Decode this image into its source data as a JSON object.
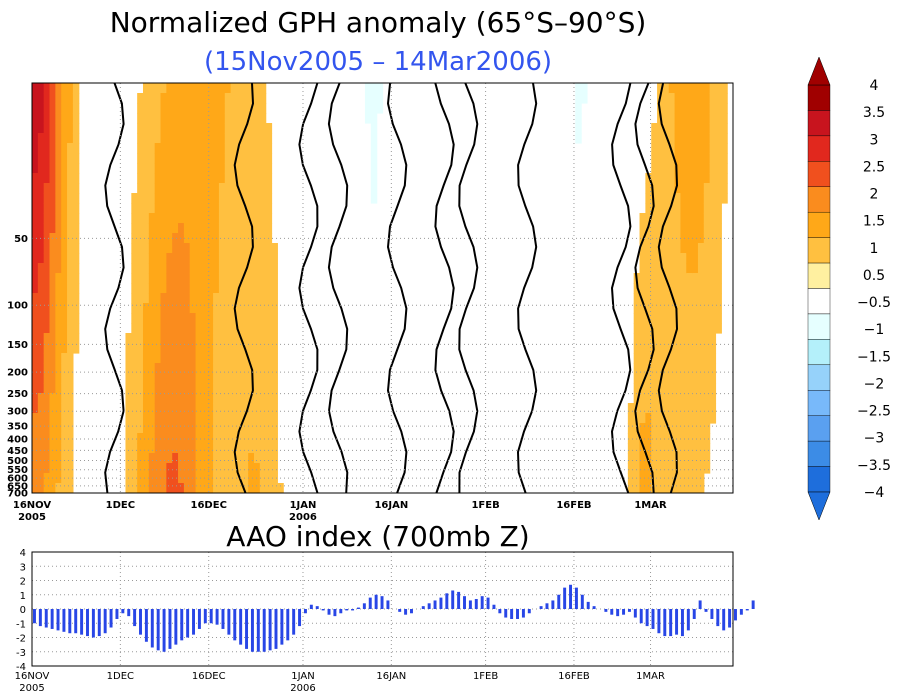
{
  "chart_data": [
    {
      "type": "heatmap",
      "title": "Normalized GPH anomaly (65°S–90°S)",
      "subtitle": "(15Nov2005 – 14Mar2006)",
      "colors": {
        "title": "#000000",
        "subtitle": "#3355ee"
      },
      "x_ticks": [
        {
          "label": "16NOV",
          "sub": "2005",
          "day": 0
        },
        {
          "label": "1DEC",
          "sub": "",
          "day": 15
        },
        {
          "label": "16DEC",
          "sub": "",
          "day": 30
        },
        {
          "label": "1JAN",
          "sub": "2006",
          "day": 46
        },
        {
          "label": "16JAN",
          "sub": "",
          "day": 61
        },
        {
          "label": "1FEB",
          "sub": "",
          "day": 77
        },
        {
          "label": "16FEB",
          "sub": "",
          "day": 92
        },
        {
          "label": "1MAR",
          "sub": "",
          "day": 105
        }
      ],
      "xlim": [
        0,
        119
      ],
      "y_ticks": [
        "50",
        "100",
        "150",
        "200",
        "250",
        "300",
        "350",
        "400",
        "450",
        "500",
        "550",
        "600",
        "650",
        "700"
      ],
      "y_pressure": [
        50,
        100,
        150,
        200,
        250,
        300,
        350,
        400,
        450,
        500,
        550,
        600,
        650,
        700
      ],
      "ylim_pressure": [
        10,
        700
      ],
      "y_scale": "log-pressure",
      "colorbar": {
        "labels": [
          "4",
          "3.5",
          "3",
          "2.5",
          "2",
          "1.5",
          "1",
          "0.5",
          "−0.5",
          "−1",
          "−1.5",
          "−2",
          "−2.5",
          "−3",
          "−3.5",
          "−4"
        ],
        "bins": [
          {
            "range": [
              3.5,
              4.0
            ],
            "color": "#a00000"
          },
          {
            "range": [
              3.0,
              3.5
            ],
            "color": "#c8141e"
          },
          {
            "range": [
              2.5,
              3.0
            ],
            "color": "#e1281e"
          },
          {
            "range": [
              2.0,
              2.5
            ],
            "color": "#f0501e"
          },
          {
            "range": [
              1.5,
              2.0
            ],
            "color": "#fa8c1e"
          },
          {
            "range": [
              1.0,
              1.5
            ],
            "color": "#ffa818"
          },
          {
            "range": [
              0.5,
              1.0
            ],
            "color": "#ffc040"
          },
          {
            "range": [
              -0.5,
              0.5
            ],
            "color": "#ffffff"
          },
          {
            "range": [
              -1.0,
              -0.5
            ],
            "color": "#e6ffff"
          },
          {
            "range": [
              -1.5,
              -1.0
            ],
            "color": "#b4f0fa"
          },
          {
            "range": [
              -2.0,
              -1.5
            ],
            "color": "#96d2fa"
          },
          {
            "range": [
              -2.5,
              -2.0
            ],
            "color": "#78b9fa"
          },
          {
            "range": [
              -3.0,
              -2.5
            ],
            "color": "#5aa0f0"
          },
          {
            "range": [
              -3.5,
              -3.0
            ],
            "color": "#3c8ce6"
          },
          {
            "range": [
              -4.0,
              -3.5
            ],
            "color": "#1e6edc"
          }
        ],
        "above_color": "#a00000",
        "below_color": "#1e6edc",
        "zero_band": "#fff0a0"
      }
    },
    {
      "type": "bar",
      "title": "AAO index (700mb Z)",
      "ylim": [
        -4,
        4
      ],
      "y_ticks": [
        "4",
        "3",
        "2",
        "1",
        "0",
        "-1",
        "-2",
        "-3",
        "-4"
      ],
      "x_ticks": [
        {
          "label": "16NOV",
          "sub": "2005",
          "day": 0
        },
        {
          "label": "1DEC",
          "sub": "",
          "day": 15
        },
        {
          "label": "16DEC",
          "sub": "",
          "day": 30
        },
        {
          "label": "1JAN",
          "sub": "2006",
          "day": 46
        },
        {
          "label": "16JAN",
          "sub": "",
          "day": 61
        },
        {
          "label": "1FEB",
          "sub": "",
          "day": 77
        },
        {
          "label": "16FEB",
          "sub": "",
          "day": 92
        },
        {
          "label": "1MAR",
          "sub": "",
          "day": 105
        }
      ],
      "xlim": [
        0,
        119
      ],
      "bar_color": "#2846e6",
      "values": [
        -1.0,
        -1.2,
        -1.3,
        -1.4,
        -1.5,
        -1.6,
        -1.7,
        -1.7,
        -1.8,
        -1.9,
        -2.0,
        -1.9,
        -1.7,
        -1.3,
        -0.7,
        -0.3,
        -0.5,
        -1.2,
        -1.8,
        -2.3,
        -2.7,
        -2.9,
        -3.0,
        -2.8,
        -2.5,
        -2.2,
        -2.0,
        -1.8,
        -1.4,
        -1.0,
        -1.0,
        -1.1,
        -1.4,
        -1.8,
        -2.2,
        -2.5,
        -2.8,
        -3.0,
        -3.0,
        -3.0,
        -2.9,
        -2.8,
        -2.5,
        -2.2,
        -1.8,
        -1.2,
        -0.3,
        0.3,
        0.2,
        -0.1,
        -0.4,
        -0.5,
        -0.3,
        -0.1,
        -0.1,
        0.1,
        0.4,
        0.8,
        1.0,
        0.9,
        0.6,
        0.0,
        -0.2,
        -0.4,
        -0.3,
        0.0,
        0.2,
        0.4,
        0.6,
        0.8,
        1.1,
        1.3,
        1.2,
        0.9,
        0.6,
        0.7,
        0.9,
        0.8,
        0.3,
        -0.3,
        -0.6,
        -0.7,
        -0.7,
        -0.6,
        -0.3,
        0.0,
        0.2,
        0.4,
        0.6,
        1.0,
        1.5,
        1.7,
        1.5,
        1.0,
        0.5,
        0.2,
        0.0,
        -0.2,
        -0.4,
        -0.5,
        -0.4,
        -0.2,
        -0.6,
        -1.0,
        -1.2,
        -1.4,
        -1.7,
        -1.9,
        -1.9,
        -1.8,
        -1.9,
        -1.5,
        -0.7,
        0.6,
        -0.2,
        -0.7,
        -1.2,
        -1.5,
        -1.3,
        -0.8,
        -0.4,
        -0.1,
        0.6
      ]
    }
  ]
}
